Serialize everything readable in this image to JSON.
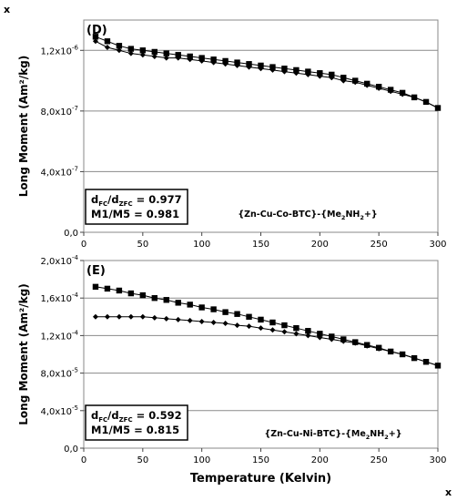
{
  "corner_marks": {
    "top_left": "x",
    "bottom_right": "x"
  },
  "chart_data": [
    {
      "type": "line",
      "panel_label": "(D)",
      "xlim": [
        0,
        300
      ],
      "ylim": [
        0,
        1.4e-06
      ],
      "x_ticks": [
        0,
        50,
        100,
        150,
        200,
        250,
        300
      ],
      "y_ticks": [
        0,
        4e-07,
        8e-07,
        1.2e-06
      ],
      "y_tick_labels": [
        {
          "mant": "0,0",
          "exp": ""
        },
        {
          "mant": "4,0x10",
          "exp": "-7"
        },
        {
          "mant": "8,0x10",
          "exp": "-7"
        },
        {
          "mant": "1,2x10",
          "exp": "-6"
        }
      ],
      "grid": "horizontal",
      "ylabel": "Long Moment (Am²/kg)",
      "xlabel": "",
      "show_x_tick_labels": true,
      "annotation_box": {
        "line1": {
          "d": "d",
          "sub1": "FC",
          "slash": "/d",
          "sub2": "ZFC",
          "val": " = 0.977"
        },
        "line2": "M1/M5 = 0.981"
      },
      "compound": {
        "text": "{Zn-Cu-Co-BTC}-{Me",
        "sub1": "2",
        "mid": "NH",
        "sub2": "2",
        "end": "+}"
      },
      "series": [
        {
          "marker": "square",
          "x": [
            10,
            20,
            30,
            40,
            50,
            60,
            70,
            80,
            90,
            100,
            110,
            120,
            130,
            140,
            150,
            160,
            170,
            180,
            190,
            200,
            210,
            220,
            230,
            240,
            250,
            260,
            270,
            280,
            290,
            300
          ],
          "values": [
            1.29e-06,
            1.26e-06,
            1.23e-06,
            1.21e-06,
            1.2e-06,
            1.19e-06,
            1.18e-06,
            1.17e-06,
            1.16e-06,
            1.15e-06,
            1.14e-06,
            1.13e-06,
            1.12e-06,
            1.11e-06,
            1.1e-06,
            1.09e-06,
            1.08e-06,
            1.07e-06,
            1.06e-06,
            1.05e-06,
            1.04e-06,
            1.02e-06,
            1e-06,
            9.8e-07,
            9.6e-07,
            9.4e-07,
            9.2e-07,
            8.9e-07,
            8.6e-07,
            8.2e-07
          ]
        },
        {
          "marker": "diamond",
          "x": [
            10,
            20,
            30,
            40,
            50,
            60,
            70,
            80,
            90,
            100,
            110,
            120,
            130,
            140,
            150,
            160,
            170,
            180,
            190,
            200,
            210,
            220,
            230,
            240,
            250,
            260,
            270,
            280,
            290,
            300
          ],
          "values": [
            1.26e-06,
            1.22e-06,
            1.2e-06,
            1.18e-06,
            1.17e-06,
            1.16e-06,
            1.15e-06,
            1.15e-06,
            1.14e-06,
            1.13e-06,
            1.12e-06,
            1.11e-06,
            1.1e-06,
            1.09e-06,
            1.08e-06,
            1.07e-06,
            1.06e-06,
            1.05e-06,
            1.04e-06,
            1.03e-06,
            1.02e-06,
            1e-06,
            9.9e-07,
            9.7e-07,
            9.5e-07,
            9.3e-07,
            9.1e-07,
            8.9e-07,
            8.6e-07,
            8.2e-07
          ]
        }
      ]
    },
    {
      "type": "line",
      "panel_label": "(E)",
      "xlim": [
        0,
        300
      ],
      "ylim": [
        0,
        0.0002
      ],
      "x_ticks": [
        0,
        50,
        100,
        150,
        200,
        250,
        300
      ],
      "y_ticks": [
        0,
        4e-05,
        8e-05,
        0.00012,
        0.00016,
        0.0002
      ],
      "y_tick_labels": [
        {
          "mant": "0,0",
          "exp": ""
        },
        {
          "mant": "4,0x10",
          "exp": "-5"
        },
        {
          "mant": "8,0x10",
          "exp": "-5"
        },
        {
          "mant": "1,2x10",
          "exp": "-4"
        },
        {
          "mant": "1,6x10",
          "exp": "-4"
        },
        {
          "mant": "2,0x10",
          "exp": "-4"
        }
      ],
      "grid": "horizontal",
      "ylabel": "Long Moment (Am²/kg)",
      "xlabel": "Temperature (Kelvin)",
      "show_x_tick_labels": true,
      "annotation_box": {
        "line1": {
          "d": "d",
          "sub1": "FC",
          "slash": "/d",
          "sub2": "ZFC",
          "val": " = 0.592"
        },
        "line2": "M1/M5 = 0.815"
      },
      "compound": {
        "text": "{Zn-Cu-Ni-BTC}-{Me",
        "sub1": "2",
        "mid": "NH",
        "sub2": "2",
        "end": "+}"
      },
      "series": [
        {
          "marker": "square",
          "x": [
            10,
            20,
            30,
            40,
            50,
            60,
            70,
            80,
            90,
            100,
            110,
            120,
            130,
            140,
            150,
            160,
            170,
            180,
            190,
            200,
            210,
            220,
            230,
            240,
            250,
            260,
            270,
            280,
            290,
            300
          ],
          "values": [
            0.000172,
            0.00017,
            0.000168,
            0.000165,
            0.000163,
            0.00016,
            0.000158,
            0.000155,
            0.000153,
            0.00015,
            0.000148,
            0.000145,
            0.000143,
            0.00014,
            0.000137,
            0.000134,
            0.000131,
            0.000128,
            0.000125,
            0.000122,
            0.000119,
            0.000116,
            0.000113,
            0.00011,
            0.000107,
            0.000103,
            0.0001,
            9.6e-05,
            9.2e-05,
            8.8e-05
          ]
        },
        {
          "marker": "diamond",
          "x": [
            10,
            20,
            30,
            40,
            50,
            60,
            70,
            80,
            90,
            100,
            110,
            120,
            130,
            140,
            150,
            160,
            170,
            180,
            190,
            200,
            210,
            220,
            230,
            240,
            250,
            260,
            270,
            280,
            290,
            300
          ],
          "values": [
            0.00014,
            0.00014,
            0.00014,
            0.00014,
            0.00014,
            0.000139,
            0.000138,
            0.000137,
            0.000136,
            0.000135,
            0.000134,
            0.000133,
            0.000131,
            0.00013,
            0.000128,
            0.000126,
            0.000124,
            0.000122,
            0.00012,
            0.000118,
            0.000116,
            0.000114,
            0.000112,
            0.000109,
            0.000106,
            0.000103,
            0.0001,
            9.6e-05,
            9.2e-05,
            8.8e-05
          ]
        }
      ]
    }
  ]
}
